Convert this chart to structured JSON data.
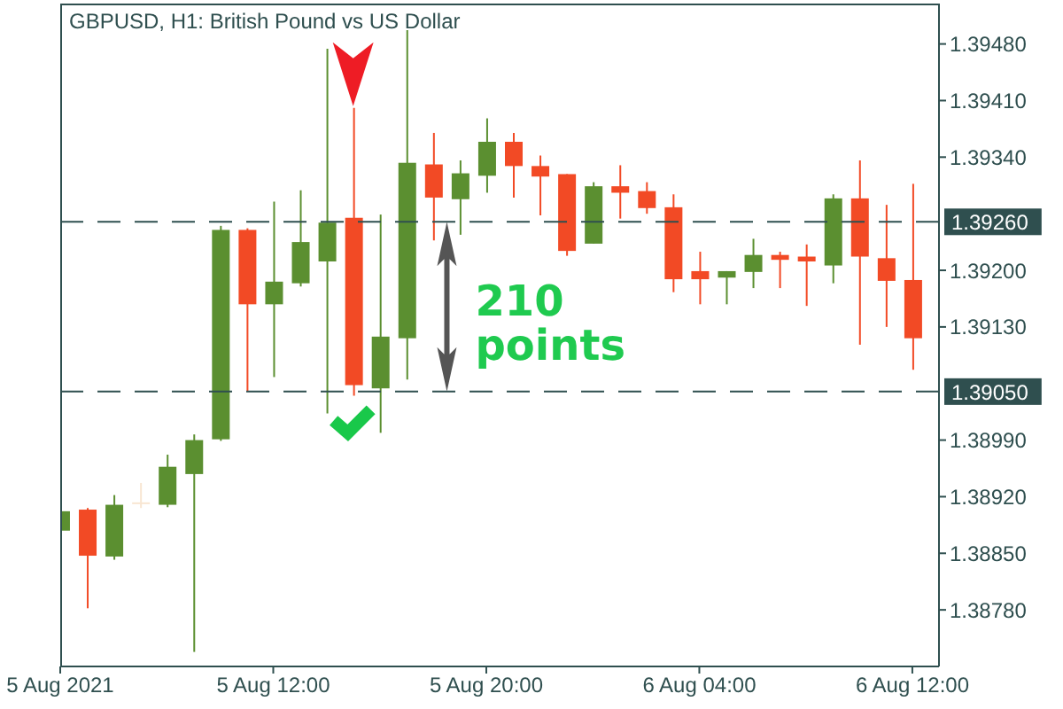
{
  "chart_data": {
    "type": "candlestick",
    "title": "GBPUSD, H1: British Pound vs US Dollar",
    "x": [
      "2021-08-05T04:00",
      "2021-08-05T05:00",
      "2021-08-05T06:00",
      "2021-08-05T07:00",
      "2021-08-05T08:00",
      "2021-08-05T09:00",
      "2021-08-05T10:00",
      "2021-08-05T11:00",
      "2021-08-05T12:00",
      "2021-08-05T13:00",
      "2021-08-05T14:00",
      "2021-08-05T15:00",
      "2021-08-05T16:00",
      "2021-08-05T17:00",
      "2021-08-05T18:00",
      "2021-08-05T19:00",
      "2021-08-05T20:00",
      "2021-08-05T21:00",
      "2021-08-05T22:00",
      "2021-08-05T23:00",
      "2021-08-06T00:00",
      "2021-08-06T01:00",
      "2021-08-06T02:00",
      "2021-08-06T03:00",
      "2021-08-06T04:00",
      "2021-08-06T05:00",
      "2021-08-06T06:00",
      "2021-08-06T07:00",
      "2021-08-06T08:00",
      "2021-08-06T09:00",
      "2021-08-06T10:00",
      "2021-08-06T11:00",
      "2021-08-06T12:00"
    ],
    "ohlc": [
      [
        1.38878,
        1.38904,
        1.38876,
        1.38902
      ],
      [
        1.38904,
        1.38906,
        1.38782,
        1.38847
      ],
      [
        1.38846,
        1.38922,
        1.38842,
        1.3891
      ],
      [
        1.38913,
        1.38937,
        1.38906,
        1.38913
      ],
      [
        1.3891,
        1.38972,
        1.38907,
        1.38957
      ],
      [
        1.38948,
        1.38997,
        1.38728,
        1.3899
      ],
      [
        1.38991,
        1.39255,
        1.38989,
        1.3925
      ],
      [
        1.3925,
        1.39252,
        1.3905,
        1.39158
      ],
      [
        1.39158,
        1.39285,
        1.39068,
        1.39186
      ],
      [
        1.39184,
        1.39299,
        1.3918,
        1.39235
      ],
      [
        1.39211,
        1.39474,
        1.39023,
        1.39259
      ],
      [
        1.39265,
        1.39401,
        1.39045,
        1.39058
      ],
      [
        1.39054,
        1.39269,
        1.38999,
        1.39118
      ],
      [
        1.39116,
        1.39497,
        1.39065,
        1.39333
      ],
      [
        1.39331,
        1.3937,
        1.39237,
        1.3929
      ],
      [
        1.39288,
        1.39336,
        1.39244,
        1.3932
      ],
      [
        1.39317,
        1.39388,
        1.39296,
        1.39359
      ],
      [
        1.39359,
        1.3937,
        1.3929,
        1.39329
      ],
      [
        1.39329,
        1.39342,
        1.39268,
        1.39316
      ],
      [
        1.39319,
        1.39319,
        1.39218,
        1.39224
      ],
      [
        1.39233,
        1.39309,
        1.39233,
        1.39304
      ],
      [
        1.39304,
        1.3933,
        1.39264,
        1.39296
      ],
      [
        1.39298,
        1.39309,
        1.3927,
        1.39277
      ],
      [
        1.39278,
        1.39294,
        1.39173,
        1.39189
      ],
      [
        1.39199,
        1.39223,
        1.39158,
        1.39189
      ],
      [
        1.39191,
        1.39199,
        1.39158,
        1.39199
      ],
      [
        1.39198,
        1.39239,
        1.39178,
        1.39219
      ],
      [
        1.39219,
        1.39223,
        1.39178,
        1.39213
      ],
      [
        1.39217,
        1.39232,
        1.39156,
        1.39211
      ],
      [
        1.39206,
        1.39294,
        1.39184,
        1.39289
      ],
      [
        1.39289,
        1.39336,
        1.39108,
        1.39217
      ],
      [
        1.39215,
        1.39281,
        1.3913,
        1.39187
      ],
      [
        1.39188,
        1.39307,
        1.39077,
        1.39116
      ]
    ],
    "colors": [
      "#5b8f30",
      "#f24a25",
      "#5b8f30",
      "#f8e6d2",
      "#5b8f30",
      "#5b8f30",
      "#5b8f30",
      "#f24a25",
      "#5b8f30",
      "#5b8f30",
      "#5b8f30",
      "#f24a25",
      "#5b8f30",
      "#5b8f30",
      "#f24a25",
      "#5b8f30",
      "#5b8f30",
      "#f24a25",
      "#f24a25",
      "#f24a25",
      "#5b8f30",
      "#f24a25",
      "#f24a25",
      "#f24a25",
      "#f24a25",
      "#5b8f30",
      "#5b8f30",
      "#f24a25",
      "#f24a25",
      "#5b8f30",
      "#f24a25",
      "#f24a25",
      "#f24a25"
    ],
    "xlim": [
      "2021-08-05T04:00",
      "2021-08-06T13:00"
    ],
    "xticks": [
      {
        "value": "2021-08-05T04:00",
        "label": "5 Aug 2021"
      },
      {
        "value": "2021-08-05T12:00",
        "label": "5 Aug 12:00"
      },
      {
        "value": "2021-08-05T20:00",
        "label": "5 Aug 20:00"
      },
      {
        "value": "2021-08-06T04:00",
        "label": "6 Aug 04:00"
      },
      {
        "value": "2021-08-06T12:00",
        "label": "6 Aug 12:00"
      }
    ],
    "ylim": [
      1.3871,
      1.3953
    ],
    "yticks": [
      {
        "value": 1.3948,
        "label": "1.39480"
      },
      {
        "value": 1.3941,
        "label": "1.39410"
      },
      {
        "value": 1.3934,
        "label": "1.39340"
      },
      {
        "value": 1.392,
        "label": "1.39200"
      },
      {
        "value": 1.3913,
        "label": "1.39130"
      },
      {
        "value": 1.3899,
        "label": "1.38990"
      },
      {
        "value": 1.3892,
        "label": "1.38920"
      },
      {
        "value": 1.3885,
        "label": "1.38850"
      },
      {
        "value": 1.3878,
        "label": "1.38780"
      }
    ],
    "ref_lines": [
      {
        "axis": "y",
        "value": 1.3926,
        "label": "1.39260",
        "color": "#2f4f4f",
        "line_style": "dashed"
      },
      {
        "axis": "y",
        "value": 1.3905,
        "label": "1.39050",
        "color": "#2f4f4f",
        "line_style": "dashed"
      }
    ],
    "annotations": [
      "210 points"
    ]
  }
}
